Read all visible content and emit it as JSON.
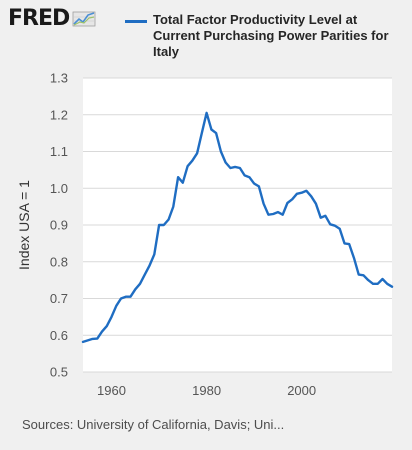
{
  "header": {
    "logo_text": "FRED",
    "logo_icon": "trend-graph-icon"
  },
  "footer": {
    "sources": "Sources: University of California, Davis; Uni..."
  },
  "colors": {
    "series": "#1f6dc2",
    "background": "#f0f0f0",
    "plot_background": "#ffffff",
    "grid": "#d9d9d9"
  },
  "chart_data": {
    "type": "line",
    "title": "",
    "xlabel": "",
    "ylabel": "Index USA = 1",
    "xlim": [
      1954,
      2019
    ],
    "ylim": [
      0.5,
      1.3
    ],
    "x_ticks": [
      "1960",
      "1980",
      "2000"
    ],
    "y_ticks": [
      "0.5",
      "0.6",
      "0.7",
      "0.8",
      "0.9",
      "1.0",
      "1.1",
      "1.2",
      "1.3"
    ],
    "grid": "horizontal",
    "legend_position": "top",
    "series": [
      {
        "name": "Total Factor Productivity Level at Current Purchasing Power Parities for Italy",
        "x": [
          1954,
          1955,
          1956,
          1957,
          1958,
          1959,
          1960,
          1961,
          1962,
          1963,
          1964,
          1965,
          1966,
          1967,
          1968,
          1969,
          1970,
          1971,
          1972,
          1973,
          1974,
          1975,
          1976,
          1977,
          1978,
          1979,
          1980,
          1981,
          1982,
          1983,
          1984,
          1985,
          1986,
          1987,
          1988,
          1989,
          1990,
          1991,
          1992,
          1993,
          1994,
          1995,
          1996,
          1997,
          1998,
          1999,
          2000,
          2001,
          2002,
          2003,
          2004,
          2005,
          2006,
          2007,
          2008,
          2009,
          2010,
          2011,
          2012,
          2013,
          2014,
          2015,
          2016,
          2017,
          2018,
          2019
        ],
        "values": [
          0.582,
          0.586,
          0.59,
          0.591,
          0.61,
          0.625,
          0.65,
          0.68,
          0.7,
          0.705,
          0.705,
          0.725,
          0.74,
          0.765,
          0.79,
          0.82,
          0.9,
          0.9,
          0.915,
          0.95,
          1.03,
          1.015,
          1.06,
          1.075,
          1.095,
          1.15,
          1.205,
          1.16,
          1.15,
          1.1,
          1.07,
          1.055,
          1.058,
          1.055,
          1.035,
          1.03,
          1.013,
          1.005,
          0.958,
          0.928,
          0.93,
          0.935,
          0.928,
          0.96,
          0.97,
          0.985,
          0.988,
          0.993,
          0.978,
          0.958,
          0.92,
          0.925,
          0.902,
          0.898,
          0.89,
          0.85,
          0.848,
          0.81,
          0.765,
          0.763,
          0.75,
          0.74,
          0.74,
          0.753,
          0.74,
          0.732
        ]
      }
    ]
  }
}
